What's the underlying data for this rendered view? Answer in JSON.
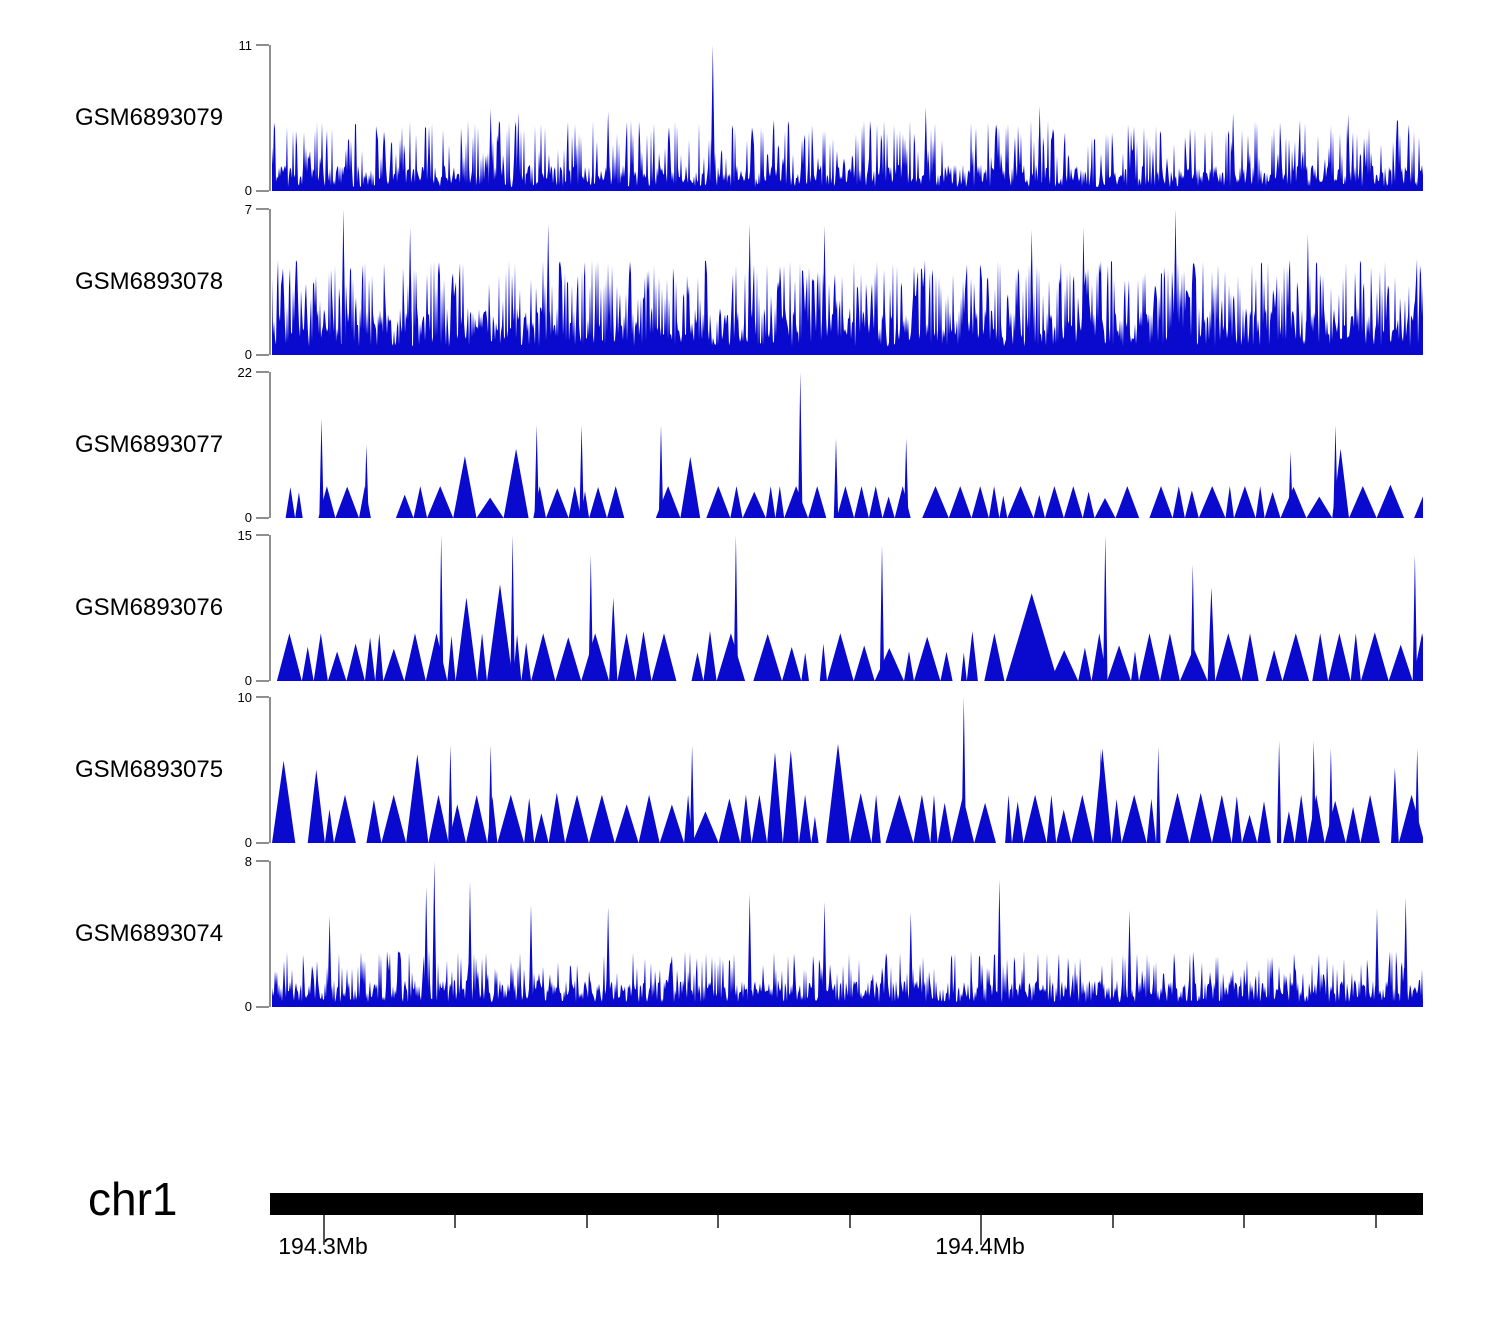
{
  "chart_data": {
    "type": "area",
    "title": "",
    "description": "Genome browser coverage tracks (blue filled signal) for six samples over chr1 ~194.28-194.46 Mb",
    "legend_position": "none",
    "grid": false,
    "x_axis": {
      "chromosome": "chr1",
      "tick_labels": [
        "194.3Mb",
        "194.4Mb"
      ],
      "units": "Mb",
      "minor_tick_interval_mb": 0.02,
      "ticks": {
        "start_frac": 0.046,
        "step_frac": 0.114,
        "count": 9,
        "labeled_indices": [
          0,
          5
        ]
      }
    },
    "signal_color": "#0a0ace",
    "tracks": [
      {
        "name": "GSM6893079",
        "ymin": 0,
        "ymax": 11,
        "style": "spikes",
        "seed": 79,
        "base": [
          0.3,
          2.0
        ],
        "spike_p": 0.26,
        "spike": [
          2.4,
          5.4
        ],
        "features": [
          {
            "pos": 0.383,
            "value": 11
          },
          {
            "pos": 0.19,
            "value": 6.2
          },
          {
            "pos": 0.214,
            "value": 5.9
          },
          {
            "pos": 0.292,
            "value": 6.0
          },
          {
            "pos": 0.568,
            "value": 6.3
          },
          {
            "pos": 0.667,
            "value": 6.4
          },
          {
            "pos": 0.835,
            "value": 5.9
          },
          {
            "pos": 0.935,
            "value": 5.8
          }
        ]
      },
      {
        "name": "GSM6893078",
        "ymin": 0,
        "ymax": 7,
        "style": "spikes",
        "seed": 78,
        "base": [
          0.4,
          2.3
        ],
        "spike_p": 0.3,
        "spike": [
          2.6,
          4.6
        ],
        "features": [
          {
            "pos": 0.062,
            "value": 7
          },
          {
            "pos": 0.785,
            "value": 7
          },
          {
            "pos": 0.12,
            "value": 6.1
          },
          {
            "pos": 0.24,
            "value": 6.3
          },
          {
            "pos": 0.415,
            "value": 6.3
          },
          {
            "pos": 0.48,
            "value": 6.2
          },
          {
            "pos": 0.66,
            "value": 6.0
          },
          {
            "pos": 0.705,
            "value": 6.1
          },
          {
            "pos": 0.9,
            "value": 5.8
          }
        ]
      },
      {
        "name": "GSM6893077",
        "ymin": 0,
        "ymax": 22,
        "style": "triangles",
        "seed": 77,
        "common": 4.8,
        "tri_w": [
          3,
          14
        ],
        "gap_p": 0.22,
        "gap_w": 14,
        "tall_p": 0.05,
        "tall": [
          8,
          11
        ],
        "features": [
          {
            "pos": 0.459,
            "value": 22
          },
          {
            "pos": 0.043,
            "value": 15
          },
          {
            "pos": 0.082,
            "value": 11
          },
          {
            "pos": 0.23,
            "value": 14
          },
          {
            "pos": 0.269,
            "value": 14
          },
          {
            "pos": 0.338,
            "value": 14
          },
          {
            "pos": 0.49,
            "value": 12
          },
          {
            "pos": 0.551,
            "value": 12
          },
          {
            "pos": 0.924,
            "value": 14
          },
          {
            "pos": 0.885,
            "value": 10
          }
        ]
      },
      {
        "name": "GSM6893076",
        "ymin": 0,
        "ymax": 15,
        "style": "triangles",
        "seed": 76,
        "common": 4.9,
        "tri_w": [
          3,
          15
        ],
        "gap_p": 0.18,
        "gap_w": 10,
        "tall_p": 0.05,
        "tall": [
          7,
          10
        ],
        "features": [
          {
            "pos": 0.147,
            "value": 15
          },
          {
            "pos": 0.209,
            "value": 15
          },
          {
            "pos": 0.277,
            "value": 13
          },
          {
            "pos": 0.403,
            "value": 15
          },
          {
            "pos": 0.53,
            "value": 14
          },
          {
            "pos": 0.724,
            "value": 15
          },
          {
            "pos": 0.8,
            "value": 12
          },
          {
            "pos": 0.993,
            "value": 13
          },
          {
            "pos": 0.66,
            "value": 9,
            "width": 26
          }
        ]
      },
      {
        "name": "GSM6893075",
        "ymin": 0,
        "ymax": 10,
        "style": "triangles",
        "seed": 75,
        "common": 3.3,
        "tri_w": [
          3,
          14
        ],
        "gap_p": 0.2,
        "gap_w": 10,
        "tall_p": 0.06,
        "tall": [
          5,
          6.8
        ],
        "features": [
          {
            "pos": 0.601,
            "value": 10
          },
          {
            "pos": 0.155,
            "value": 6.7
          },
          {
            "pos": 0.19,
            "value": 6.7
          },
          {
            "pos": 0.365,
            "value": 6.7
          },
          {
            "pos": 0.72,
            "value": 6.5
          },
          {
            "pos": 0.77,
            "value": 6.6
          },
          {
            "pos": 0.875,
            "value": 7
          },
          {
            "pos": 0.905,
            "value": 7
          },
          {
            "pos": 0.92,
            "value": 6.5
          },
          {
            "pos": 0.995,
            "value": 6.5
          }
        ]
      },
      {
        "name": "GSM6893074",
        "ymin": 0,
        "ymax": 8,
        "style": "spikes",
        "seed": 74,
        "base": [
          0.25,
          1.5
        ],
        "spike_p": 0.2,
        "spike": [
          1.7,
          3.1
        ],
        "features": [
          {
            "pos": 0.141,
            "value": 8
          },
          {
            "pos": 0.134,
            "value": 6.6
          },
          {
            "pos": 0.172,
            "value": 6.9
          },
          {
            "pos": 0.632,
            "value": 7
          },
          {
            "pos": 0.05,
            "value": 5.0
          },
          {
            "pos": 0.225,
            "value": 5.6
          },
          {
            "pos": 0.292,
            "value": 5.5
          },
          {
            "pos": 0.415,
            "value": 6.2
          },
          {
            "pos": 0.48,
            "value": 5.8
          },
          {
            "pos": 0.555,
            "value": 5.2
          },
          {
            "pos": 0.745,
            "value": 5.3
          },
          {
            "pos": 0.96,
            "value": 5.4
          },
          {
            "pos": 0.985,
            "value": 6.0
          }
        ]
      }
    ]
  }
}
